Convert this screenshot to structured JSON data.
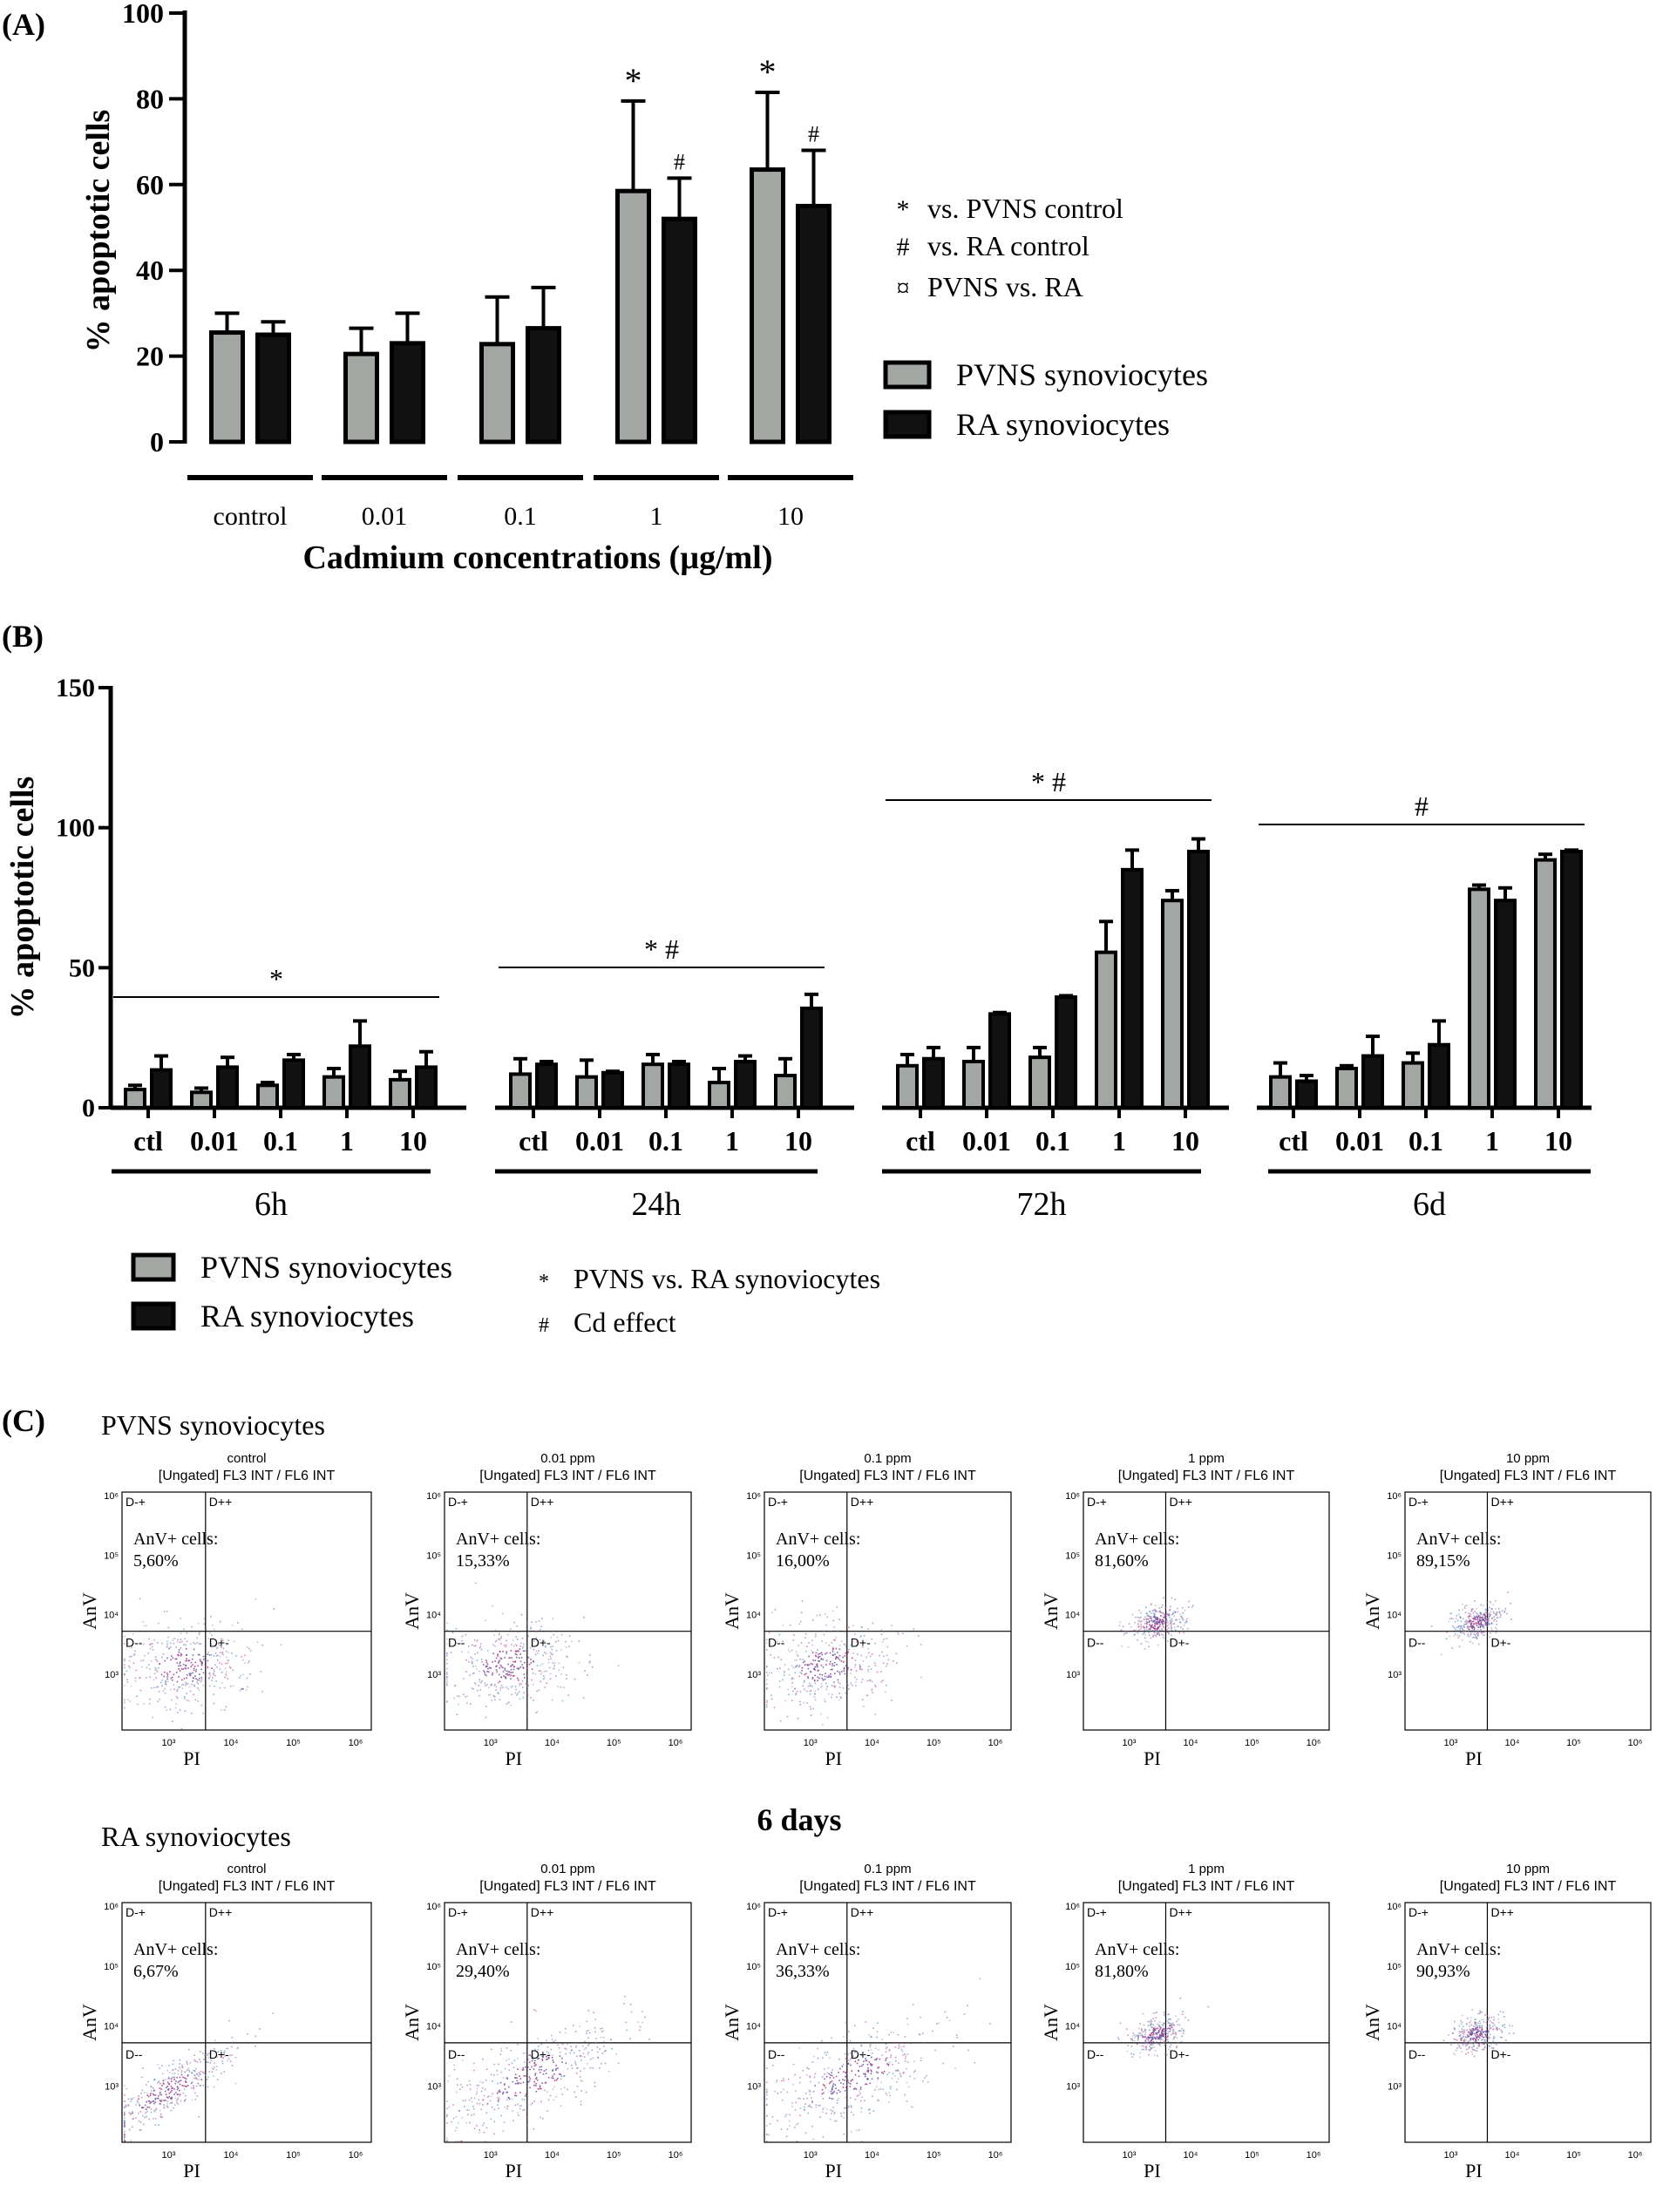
{
  "panel_labels": {
    "a": "(A)",
    "b": "(B)",
    "c": "(C)"
  },
  "colors": {
    "pvns": "#a2a7a4",
    "ra": "#111111",
    "axis": "#000000",
    "cloud_pink": "#c0307a",
    "cloud_purple": "#6a5aa8",
    "cloud_blue": "#2b78b8"
  },
  "chart_data": [
    {
      "id": "A",
      "type": "bar",
      "title": "",
      "ylabel": "% apoptotic cells",
      "xlabel": "Cadmium concentrations (µg/ml)",
      "ylim": [
        0,
        100
      ],
      "yticks": [
        0,
        20,
        40,
        60,
        80,
        100
      ],
      "categories": [
        "control",
        "0.01",
        "0.1",
        "1",
        "10"
      ],
      "series": [
        {
          "name": "PVNS synoviocytes",
          "values": [
            25.5,
            20.5,
            22.8,
            58.5,
            63.5
          ],
          "errors": [
            4.5,
            6.0,
            11.0,
            21.0,
            18.0
          ]
        },
        {
          "name": "RA synoviocytes",
          "values": [
            25.0,
            23.0,
            26.5,
            52.0,
            55.0
          ],
          "errors": [
            3.0,
            7.0,
            9.5,
            9.5,
            13.0
          ]
        }
      ],
      "annotations": [
        {
          "category": "1",
          "series": 0,
          "symbol": "*"
        },
        {
          "category": "1",
          "series": 1,
          "symbol": "#"
        },
        {
          "category": "10",
          "series": 0,
          "symbol": "*"
        },
        {
          "category": "10",
          "series": 1,
          "symbol": "#"
        }
      ],
      "symbol_legend": [
        {
          "symbol": "*",
          "text": "vs. PVNS control"
        },
        {
          "symbol": "#",
          "text": "vs. RA control"
        },
        {
          "symbol": "¤",
          "text": "PVNS vs. RA"
        }
      ],
      "legend": [
        "PVNS synoviocytes",
        "RA synoviocytes"
      ]
    },
    {
      "id": "B",
      "type": "bar",
      "ylabel": "% apoptotic cells",
      "ylim": [
        0,
        150
      ],
      "yticks": [
        0,
        50,
        100,
        150
      ],
      "groups": [
        {
          "label": "6h",
          "categories": [
            "ctl",
            "0.01",
            "0.1",
            "1",
            "10"
          ],
          "pvns": [
            6.5,
            5.5,
            8.0,
            11.0,
            10.0
          ],
          "pvns_err": [
            1.5,
            1.5,
            1.0,
            3.0,
            3.0
          ],
          "ra": [
            13.5,
            14.5,
            17.0,
            22.0,
            14.5
          ],
          "ra_err": [
            5.0,
            3.5,
            2.0,
            9.0,
            5.5
          ],
          "bracket": "*"
        },
        {
          "label": "24h",
          "categories": [
            "ctl",
            "0.01",
            "0.1",
            "1",
            "10"
          ],
          "pvns": [
            12.0,
            11.0,
            15.5,
            9.0,
            11.5
          ],
          "pvns_err": [
            5.5,
            6.0,
            3.5,
            5.0,
            6.0
          ],
          "ra": [
            15.5,
            12.5,
            15.5,
            16.5,
            35.5
          ],
          "ra_err": [
            1.0,
            0.5,
            1.0,
            2.0,
            5.0
          ],
          "bracket": "* #"
        },
        {
          "label": "72h",
          "categories": [
            "ctl",
            "0.01",
            "0.1",
            "1",
            "10"
          ],
          "pvns": [
            15.0,
            16.5,
            18.0,
            55.5,
            74.0
          ],
          "pvns_err": [
            4.0,
            5.0,
            3.5,
            11.0,
            3.5
          ],
          "ra": [
            17.5,
            33.5,
            39.5,
            85.0,
            91.5
          ],
          "ra_err": [
            4.0,
            0.5,
            0.5,
            7.0,
            4.5
          ],
          "bracket": "* #"
        },
        {
          "label": "6d",
          "categories": [
            "ctl",
            "0.01",
            "0.1",
            "1",
            "10"
          ],
          "pvns": [
            11.0,
            14.0,
            16.0,
            78.0,
            88.5
          ],
          "pvns_err": [
            5.0,
            1.0,
            3.5,
            1.5,
            2.0
          ],
          "ra": [
            9.5,
            18.5,
            22.5,
            74.0,
            91.5
          ],
          "ra_err": [
            2.0,
            7.0,
            8.5,
            4.5,
            0.5
          ],
          "bracket": "#"
        }
      ],
      "legend": [
        "PVNS synoviocytes",
        "RA synoviocytes"
      ],
      "symbol_legend": [
        {
          "symbol": "*",
          "text": "PVNS vs. RA synoviocytes"
        },
        {
          "symbol": "#",
          "text": "Cd effect"
        }
      ]
    }
  ],
  "flow": {
    "center_title": "6 days",
    "rows": [
      {
        "label": "PVNS synoviocytes",
        "plots": [
          {
            "title": "control",
            "percent": "5,60%",
            "type": "diffuse"
          },
          {
            "title": "0.01 ppm",
            "percent": "15,33%",
            "type": "diffuse"
          },
          {
            "title": "0.1 ppm",
            "percent": "16,00%",
            "type": "diffuse"
          },
          {
            "title": "1 ppm",
            "percent": "81,60%",
            "type": "tight"
          },
          {
            "title": "10 ppm",
            "percent": "89,15%",
            "type": "tight"
          }
        ]
      },
      {
        "label": "RA synoviocytes",
        "plots": [
          {
            "title": "control",
            "percent": "6,67%",
            "type": "diag"
          },
          {
            "title": "0.01 ppm",
            "percent": "29,40%",
            "type": "diag-wide"
          },
          {
            "title": "0.1 ppm",
            "percent": "36,33%",
            "type": "diag-wide"
          },
          {
            "title": "1 ppm",
            "percent": "81,80%",
            "type": "tight"
          },
          {
            "title": "10 ppm",
            "percent": "90,93%",
            "type": "tight"
          }
        ]
      }
    ],
    "gate_text": "[Ungated] FL3 INT / FL6 INT",
    "anv_label": "AnV+ cells:",
    "x_axis": "PI",
    "y_axis": "AnV",
    "quadrants": [
      "D-+",
      "D++",
      "D--",
      "D+-"
    ],
    "decades": [
      "10³",
      "10⁴",
      "10⁵",
      "10⁶"
    ]
  }
}
